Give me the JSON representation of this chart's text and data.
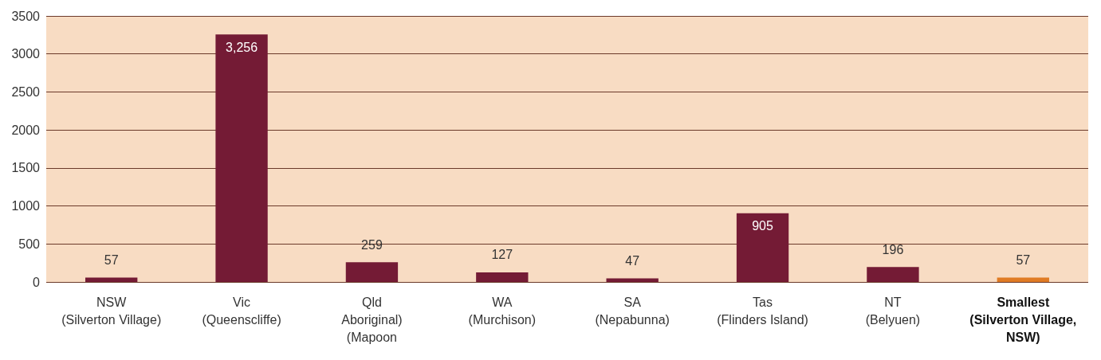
{
  "chart_data": {
    "type": "bar",
    "categories": [
      "NSW\n(Silverton Village)",
      "Vic\n(Queenscliffe)",
      "Qld\nAboriginal)\n(Mapoon",
      "WA\n(Murchison)",
      "SA\n(Nepabunna)",
      "Tas\n(Flinders Island)",
      "NT\n(Belyuen)",
      "Smallest\n(Silverton Village,\nNSW)"
    ],
    "values": [
      57,
      3256,
      259,
      127,
      47,
      905,
      196,
      57
    ],
    "colors": [
      "#741b35",
      "#741b35",
      "#741b35",
      "#741b35",
      "#741b35",
      "#741b35",
      "#741b35",
      "#e07b24"
    ],
    "value_labels": [
      "57",
      "3,256",
      "259",
      "127",
      "47",
      "905",
      "196",
      "57"
    ],
    "ylim": [
      0,
      3500
    ],
    "yticks": [
      0,
      500,
      1000,
      1500,
      2000,
      2500,
      3000,
      3500
    ],
    "grid": "y"
  }
}
